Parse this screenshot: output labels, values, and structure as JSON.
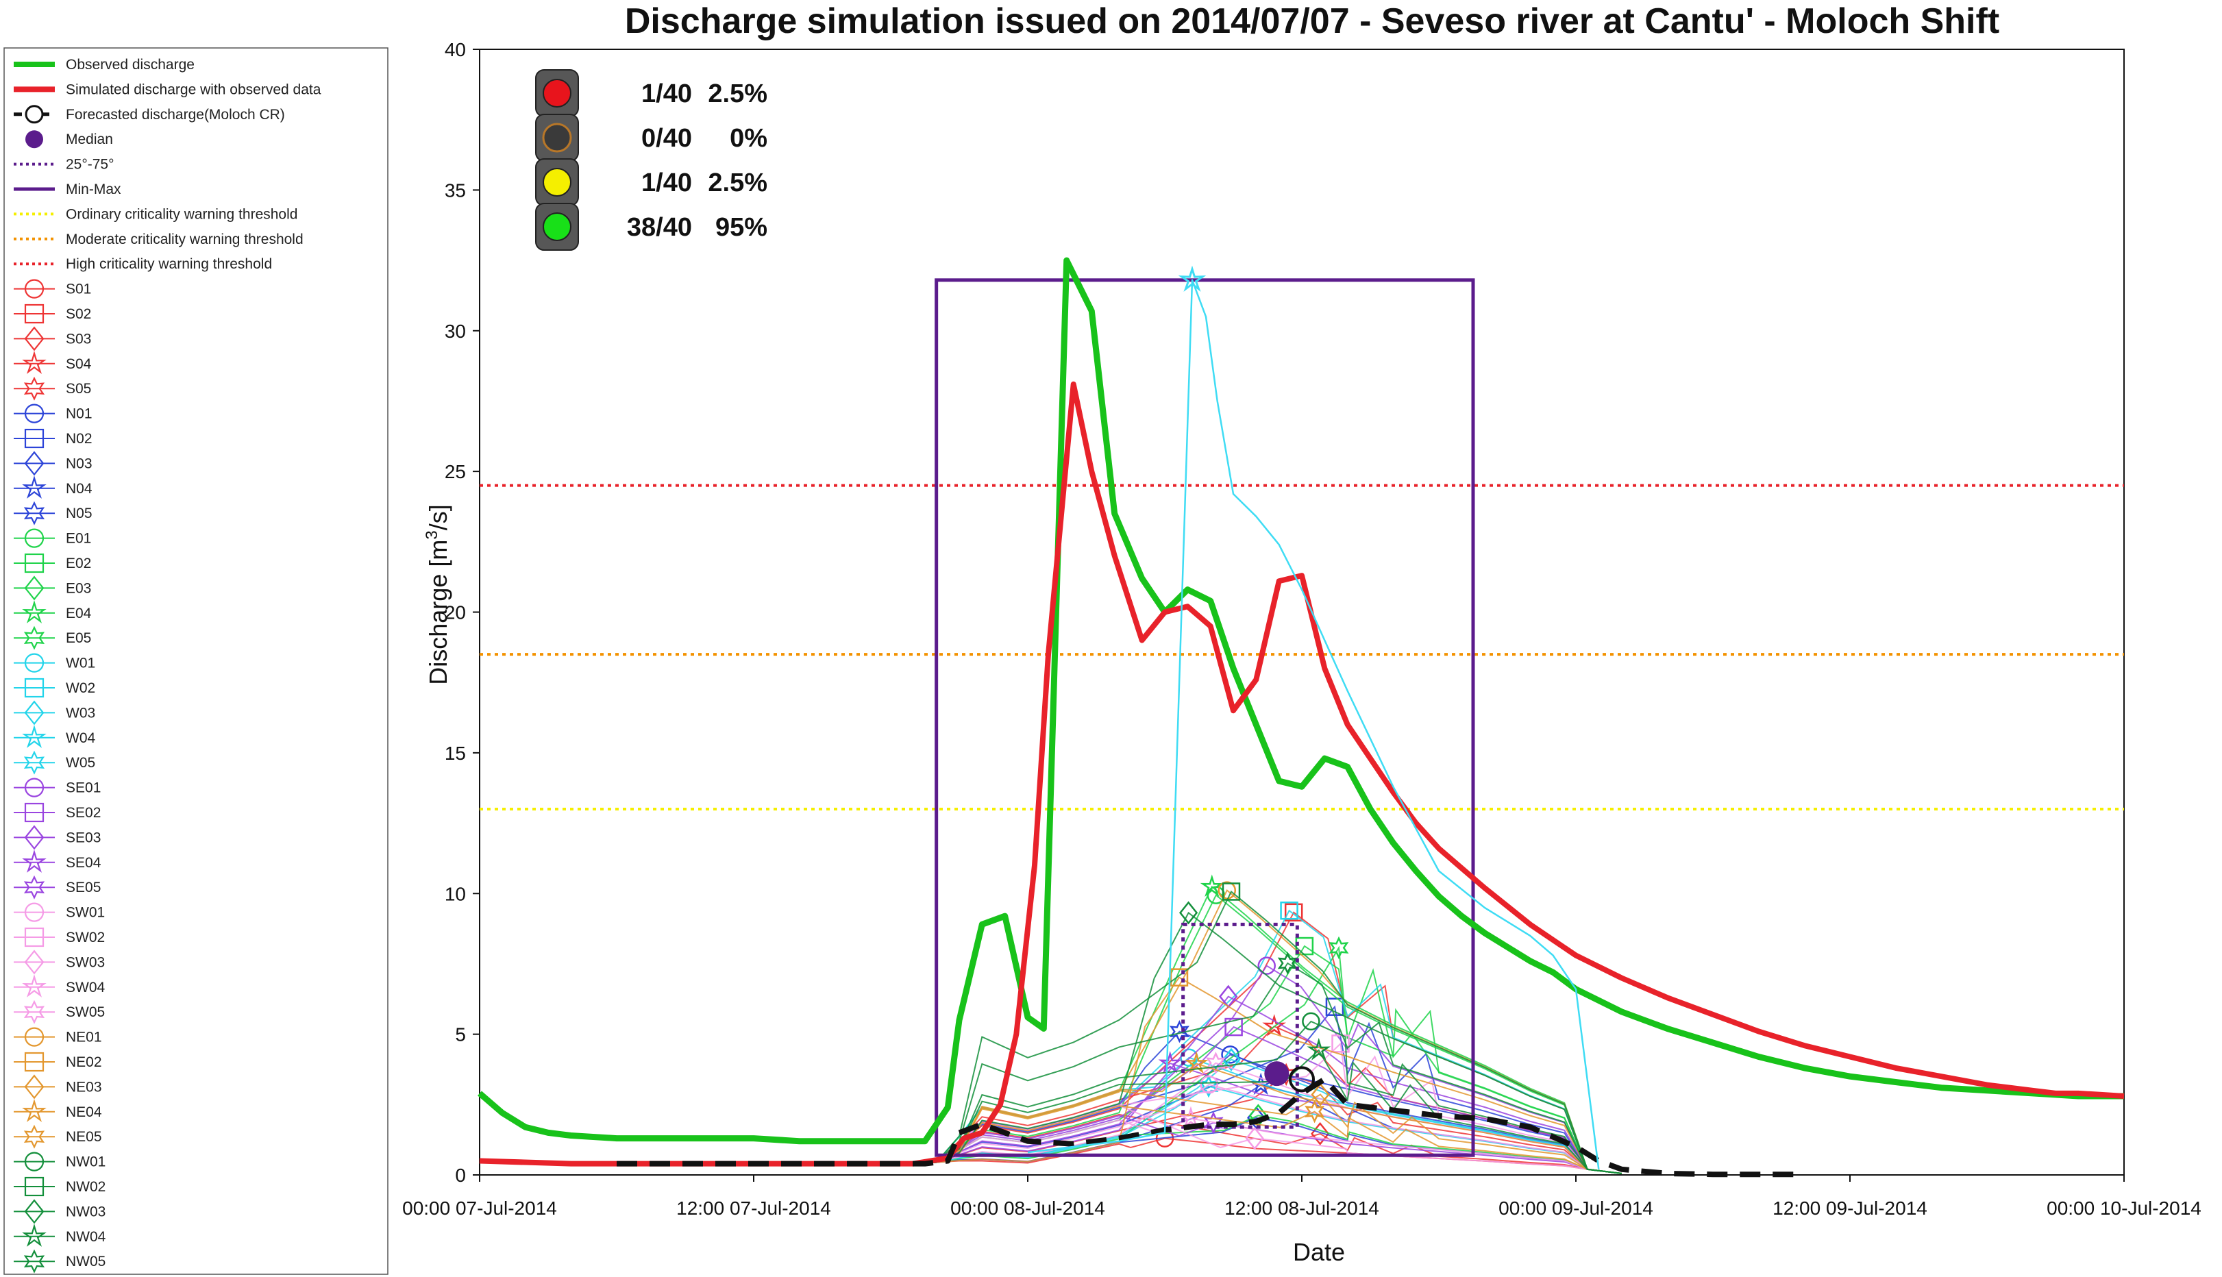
{
  "chart_data": {
    "type": "line",
    "title": "Discharge simulation issued on 2014/07/07 - Seveso river at Cantu' - Moloch Shift",
    "xlabel": "Date",
    "ylabel": "Discharge [m³/s]",
    "ylabel_main": "Discharge [m",
    "ylabel_sup": "3",
    "ylabel_tail": "/s]",
    "x_unit": "hours since 00:00 07-Jul-2014",
    "xlim": [
      0,
      72
    ],
    "ylim": [
      0,
      40
    ],
    "xticks": [
      {
        "x": 0,
        "label": "00:00 07-Jul-2014"
      },
      {
        "x": 12,
        "label": "12:00 07-Jul-2014"
      },
      {
        "x": 24,
        "label": "00:00 08-Jul-2014"
      },
      {
        "x": 36,
        "label": "12:00 08-Jul-2014"
      },
      {
        "x": 48,
        "label": "00:00 09-Jul-2014"
      },
      {
        "x": 60,
        "label": "12:00 09-Jul-2014"
      },
      {
        "x": 72,
        "label": "00:00 10-Jul-2014"
      }
    ],
    "yticks": [
      0,
      5,
      10,
      15,
      20,
      25,
      30,
      35,
      40
    ],
    "thresholds": [
      {
        "name": "Ordinary criticality warning threshold",
        "value": 13,
        "color": "#f5ef00"
      },
      {
        "name": "Moderate criticality warning threshold",
        "value": 18.5,
        "color": "#f39200"
      },
      {
        "name": "High criticality warning threshold",
        "value": 24.5,
        "color": "#e8222a"
      }
    ],
    "min_max_box": {
      "x_start": 20,
      "x_end": 43.5,
      "min": 0.7,
      "max": 31.8
    },
    "iqr_box": {
      "x_start": 30.8,
      "x_end": 35.8,
      "p25": 1.7,
      "p75": 8.9
    },
    "median": {
      "x": 34.9,
      "y": 3.6
    },
    "series": [
      {
        "name": "Observed discharge",
        "color": "#18c21a",
        "x": [
          0,
          1,
          2,
          3,
          4,
          6,
          8,
          10,
          12,
          14,
          16,
          18,
          19.5,
          20.5,
          21,
          22,
          23,
          24,
          24.7,
          25.7,
          26.8,
          27.8,
          29,
          30,
          31,
          32,
          33,
          34,
          35,
          36,
          37,
          38,
          39,
          40,
          41,
          42,
          43,
          44,
          45,
          46,
          47,
          48,
          50,
          52,
          54,
          56,
          58,
          60,
          62,
          64,
          66,
          68,
          70,
          72
        ],
        "y": [
          2.9,
          2.2,
          1.7,
          1.5,
          1.4,
          1.3,
          1.3,
          1.3,
          1.3,
          1.2,
          1.2,
          1.2,
          1.2,
          2.4,
          5.5,
          8.9,
          9.2,
          5.6,
          5.2,
          32.5,
          30.7,
          23.5,
          21.2,
          20.0,
          20.8,
          20.4,
          18.0,
          16.0,
          14.0,
          13.8,
          14.8,
          14.5,
          13.0,
          11.8,
          10.8,
          9.9,
          9.2,
          8.6,
          8.1,
          7.6,
          7.2,
          6.6,
          5.8,
          5.2,
          4.7,
          4.2,
          3.8,
          3.5,
          3.3,
          3.1,
          3.0,
          2.9,
          2.8,
          2.8
        ]
      },
      {
        "name": "Simulated discharge with observed data",
        "color": "#e8222a",
        "x": [
          0,
          4,
          8,
          12,
          16,
          19,
          20.5,
          21.2,
          22,
          22.8,
          23.5,
          24.3,
          24.9,
          26,
          26.8,
          27.8,
          29,
          30,
          31,
          32,
          33,
          34,
          35,
          36,
          37,
          38,
          39,
          40,
          41,
          42,
          44,
          46,
          48,
          50,
          52,
          54,
          56,
          58,
          60,
          62,
          64,
          66,
          68,
          69,
          70,
          71,
          72
        ],
        "y": [
          0.5,
          0.4,
          0.4,
          0.4,
          0.4,
          0.4,
          0.6,
          1.3,
          1.5,
          2.5,
          5.0,
          11.0,
          18.5,
          28.1,
          25.0,
          22.0,
          19.0,
          20.0,
          20.2,
          19.5,
          16.5,
          17.6,
          21.1,
          21.3,
          18.0,
          16.0,
          14.8,
          13.6,
          12.5,
          11.6,
          10.2,
          8.9,
          7.8,
          7.0,
          6.3,
          5.7,
          5.1,
          4.6,
          4.2,
          3.8,
          3.5,
          3.2,
          3.0,
          2.9,
          2.9,
          2.85,
          2.8
        ]
      },
      {
        "name": "Forecasted discharge(Moloch CR)",
        "color": "#111111",
        "x": [
          6,
          18,
          19.5,
          20.5,
          21,
          22,
          24,
          26,
          28,
          30,
          32,
          33,
          34,
          35,
          36,
          37,
          38,
          39,
          40,
          41,
          42,
          44,
          46,
          48,
          49,
          50,
          52,
          54,
          56,
          58
        ],
        "y": [
          0.4,
          0.4,
          0.4,
          0.5,
          1.5,
          1.8,
          1.2,
          1.1,
          1.3,
          1.6,
          1.8,
          1.8,
          1.9,
          2.2,
          2.9,
          3.4,
          2.5,
          2.4,
          2.3,
          2.2,
          2.1,
          2.0,
          1.7,
          1.0,
          0.5,
          0.2,
          0.05,
          0.02,
          0.02,
          0.02
        ]
      },
      {
        "name": "W04",
        "color": "#3fdcf4",
        "x": [
          24,
          26,
          28,
          30,
          31.2,
          31.8,
          32.3,
          33,
          34,
          35,
          36,
          37,
          38,
          39,
          40,
          41,
          42,
          44,
          46,
          47,
          48,
          49
        ],
        "y": [
          0.8,
          1.0,
          1.2,
          1.5,
          31.8,
          30.5,
          27.5,
          24.2,
          23.4,
          22.4,
          20.8,
          19.0,
          17.2,
          15.5,
          13.8,
          12.3,
          10.8,
          9.5,
          8.5,
          7.8,
          6.6,
          0.2
        ]
      }
    ],
    "ensemble_members": [
      "S01",
      "S02",
      "S03",
      "S04",
      "S05",
      "N01",
      "N02",
      "N03",
      "N04",
      "N05",
      "E01",
      "E02",
      "E03",
      "E04",
      "E05",
      "W01",
      "W02",
      "W03",
      "W04",
      "W05",
      "SE01",
      "SE02",
      "SE03",
      "SE04",
      "SE05",
      "SW01",
      "SW02",
      "SW03",
      "SW04",
      "SW05",
      "NE01",
      "NE02",
      "NE03",
      "NE04",
      "NE05",
      "NW01",
      "NW02",
      "NW03",
      "NW04",
      "NW05"
    ],
    "legend_position": "left-outside",
    "traffic_light": [
      {
        "color": "#e8141c",
        "count": "1/40",
        "percent": "2.5%"
      },
      {
        "color": "#b87728",
        "count": "0/40",
        "percent": "0%"
      },
      {
        "color": "#f5ef00",
        "count": "1/40",
        "percent": "2.5%"
      },
      {
        "color": "#18e018",
        "count": "38/40",
        "percent": "95%"
      }
    ]
  },
  "legend": {
    "main": [
      {
        "label": "Observed discharge",
        "color": "#18c21a",
        "style": "thick"
      },
      {
        "label": "Simulated discharge with observed data",
        "color": "#e8222a",
        "style": "thick"
      },
      {
        "label": "Forecasted discharge(Moloch CR)",
        "color": "#111111",
        "style": "circle"
      },
      {
        "label": "Median",
        "color": "#5b1c8c",
        "style": "dot"
      },
      {
        "label": "25°-75°",
        "color": "#5b1c8c",
        "style": "dotted"
      },
      {
        "label": "Min-Max",
        "color": "#5b1c8c",
        "style": "solid"
      },
      {
        "label": "Ordinary criticality warning threshold",
        "color": "#f5ef00",
        "style": "dotted"
      },
      {
        "label": "Moderate criticality warning threshold",
        "color": "#f39200",
        "style": "dotted"
      },
      {
        "label": "High criticality warning threshold",
        "color": "#e8222a",
        "style": "dotted"
      }
    ],
    "members": [
      {
        "label": "S01",
        "color": "#ee3535",
        "marker": "circle"
      },
      {
        "label": "S02",
        "color": "#ee3535",
        "marker": "square"
      },
      {
        "label": "S03",
        "color": "#ee3535",
        "marker": "diamond"
      },
      {
        "label": "S04",
        "color": "#ee3535",
        "marker": "star"
      },
      {
        "label": "S05",
        "color": "#ee3535",
        "marker": "hexagram"
      },
      {
        "label": "N01",
        "color": "#2c44d8",
        "marker": "circle"
      },
      {
        "label": "N02",
        "color": "#2c44d8",
        "marker": "square"
      },
      {
        "label": "N03",
        "color": "#2c44d8",
        "marker": "diamond"
      },
      {
        "label": "N04",
        "color": "#2c44d8",
        "marker": "star"
      },
      {
        "label": "N05",
        "color": "#2c44d8",
        "marker": "hexagram"
      },
      {
        "label": "E01",
        "color": "#1fd34a",
        "marker": "circle"
      },
      {
        "label": "E02",
        "color": "#1fd34a",
        "marker": "square"
      },
      {
        "label": "E03",
        "color": "#1fd34a",
        "marker": "diamond"
      },
      {
        "label": "E04",
        "color": "#1fd34a",
        "marker": "star"
      },
      {
        "label": "E05",
        "color": "#1fd34a",
        "marker": "hexagram"
      },
      {
        "label": "W01",
        "color": "#22d4ea",
        "marker": "circle"
      },
      {
        "label": "W02",
        "color": "#22d4ea",
        "marker": "square"
      },
      {
        "label": "W03",
        "color": "#22d4ea",
        "marker": "diamond"
      },
      {
        "label": "W04",
        "color": "#22d4ea",
        "marker": "star"
      },
      {
        "label": "W05",
        "color": "#22d4ea",
        "marker": "hexagram"
      },
      {
        "label": "SE01",
        "color": "#9a45e0",
        "marker": "circle"
      },
      {
        "label": "SE02",
        "color": "#9a45e0",
        "marker": "square"
      },
      {
        "label": "SE03",
        "color": "#9a45e0",
        "marker": "diamond"
      },
      {
        "label": "SE04",
        "color": "#9a45e0",
        "marker": "star"
      },
      {
        "label": "SE05",
        "color": "#9a45e0",
        "marker": "hexagram"
      },
      {
        "label": "SW01",
        "color": "#f59be6",
        "marker": "circle"
      },
      {
        "label": "SW02",
        "color": "#f59be6",
        "marker": "square"
      },
      {
        "label": "SW03",
        "color": "#f59be6",
        "marker": "diamond"
      },
      {
        "label": "SW04",
        "color": "#f59be6",
        "marker": "star"
      },
      {
        "label": "SW05",
        "color": "#f59be6",
        "marker": "hexagram"
      },
      {
        "label": "NE01",
        "color": "#e3972e",
        "marker": "circle"
      },
      {
        "label": "NE02",
        "color": "#e3972e",
        "marker": "square"
      },
      {
        "label": "NE03",
        "color": "#e3972e",
        "marker": "diamond"
      },
      {
        "label": "NE04",
        "color": "#e3972e",
        "marker": "star"
      },
      {
        "label": "NE05",
        "color": "#e3972e",
        "marker": "hexagram"
      },
      {
        "label": "NW01",
        "color": "#138f3b",
        "marker": "circle"
      },
      {
        "label": "NW02",
        "color": "#138f3b",
        "marker": "square"
      },
      {
        "label": "NW03",
        "color": "#138f3b",
        "marker": "diamond"
      },
      {
        "label": "NW04",
        "color": "#138f3b",
        "marker": "star"
      },
      {
        "label": "NW05",
        "color": "#138f3b",
        "marker": "hexagram"
      }
    ]
  }
}
